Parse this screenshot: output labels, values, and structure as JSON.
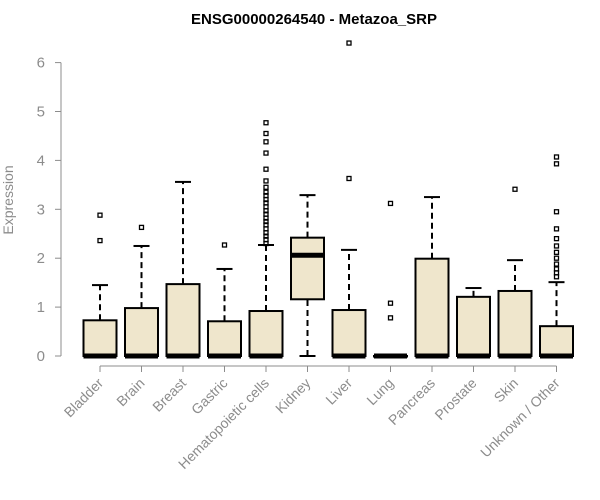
{
  "chart_data": {
    "type": "boxplot",
    "title": "ENSG00000264540 - Metazoa_SRP",
    "ylabel": "Expression",
    "xlabel": "",
    "ylim": [
      0,
      6.5
    ],
    "yticks": [
      0,
      1,
      2,
      3,
      4,
      5,
      6
    ],
    "box_fill": "#efe6cc",
    "axis_color": "#8c8c8c",
    "categories": [
      "Bladder",
      "Brain",
      "Breast",
      "Gastric",
      "Hematopoietic cells",
      "Kidney",
      "Liver",
      "Lung",
      "Pancreas",
      "Prostate",
      "Skin",
      "Unknown / Other"
    ],
    "boxes": [
      {
        "category": "Bladder",
        "min": 0,
        "q1": 0,
        "median": 0,
        "q3": 0.73,
        "max": 1.45,
        "outliers": [
          2.36,
          2.88
        ]
      },
      {
        "category": "Brain",
        "min": 0,
        "q1": 0,
        "median": 0,
        "q3": 0.98,
        "max": 2.25,
        "outliers": [
          2.63
        ]
      },
      {
        "category": "Breast",
        "min": 0,
        "q1": 0,
        "median": 0,
        "q3": 1.47,
        "max": 3.56,
        "outliers": []
      },
      {
        "category": "Gastric",
        "min": 0,
        "q1": 0,
        "median": 0,
        "q3": 0.71,
        "max": 1.78,
        "outliers": [
          2.27
        ]
      },
      {
        "category": "Hematopoietic cells",
        "min": 0,
        "q1": 0,
        "median": 0,
        "q3": 0.92,
        "max": 2.27,
        "outliers": [
          2.3,
          2.38,
          2.45,
          2.52,
          2.6,
          2.68,
          2.75,
          2.82,
          2.9,
          2.97,
          3.05,
          3.13,
          3.2,
          3.28,
          3.35,
          3.45,
          3.58,
          3.82,
          4.15,
          4.38,
          4.55,
          4.77
        ]
      },
      {
        "category": "Kidney",
        "min": 0,
        "q1": 1.16,
        "median": 2.06,
        "q3": 2.42,
        "max": 3.29,
        "outliers": []
      },
      {
        "category": "Liver",
        "min": 0,
        "q1": 0,
        "median": 0,
        "q3": 0.94,
        "max": 2.17,
        "outliers": [
          3.63,
          6.4
        ]
      },
      {
        "category": "Lung",
        "min": 0,
        "q1": 0,
        "median": 0,
        "q3": 0,
        "max": 0,
        "outliers": [
          0.78,
          1.08,
          3.12
        ]
      },
      {
        "category": "Pancreas",
        "min": 0,
        "q1": 0,
        "median": 0,
        "q3": 1.99,
        "max": 3.25,
        "outliers": []
      },
      {
        "category": "Prostate",
        "min": 0,
        "q1": 0,
        "median": 0,
        "q3": 1.21,
        "max": 1.39,
        "outliers": []
      },
      {
        "category": "Skin",
        "min": 0,
        "q1": 0,
        "median": 0,
        "q3": 1.33,
        "max": 1.96,
        "outliers": [
          3.41
        ]
      },
      {
        "category": "Unknown / Other",
        "min": 0,
        "q1": 0,
        "median": 0,
        "q3": 0.61,
        "max": 1.51,
        "outliers": [
          1.62,
          1.7,
          1.78,
          1.88,
          2.0,
          2.12,
          2.25,
          2.4,
          2.6,
          2.95,
          3.93,
          4.07
        ]
      }
    ]
  }
}
